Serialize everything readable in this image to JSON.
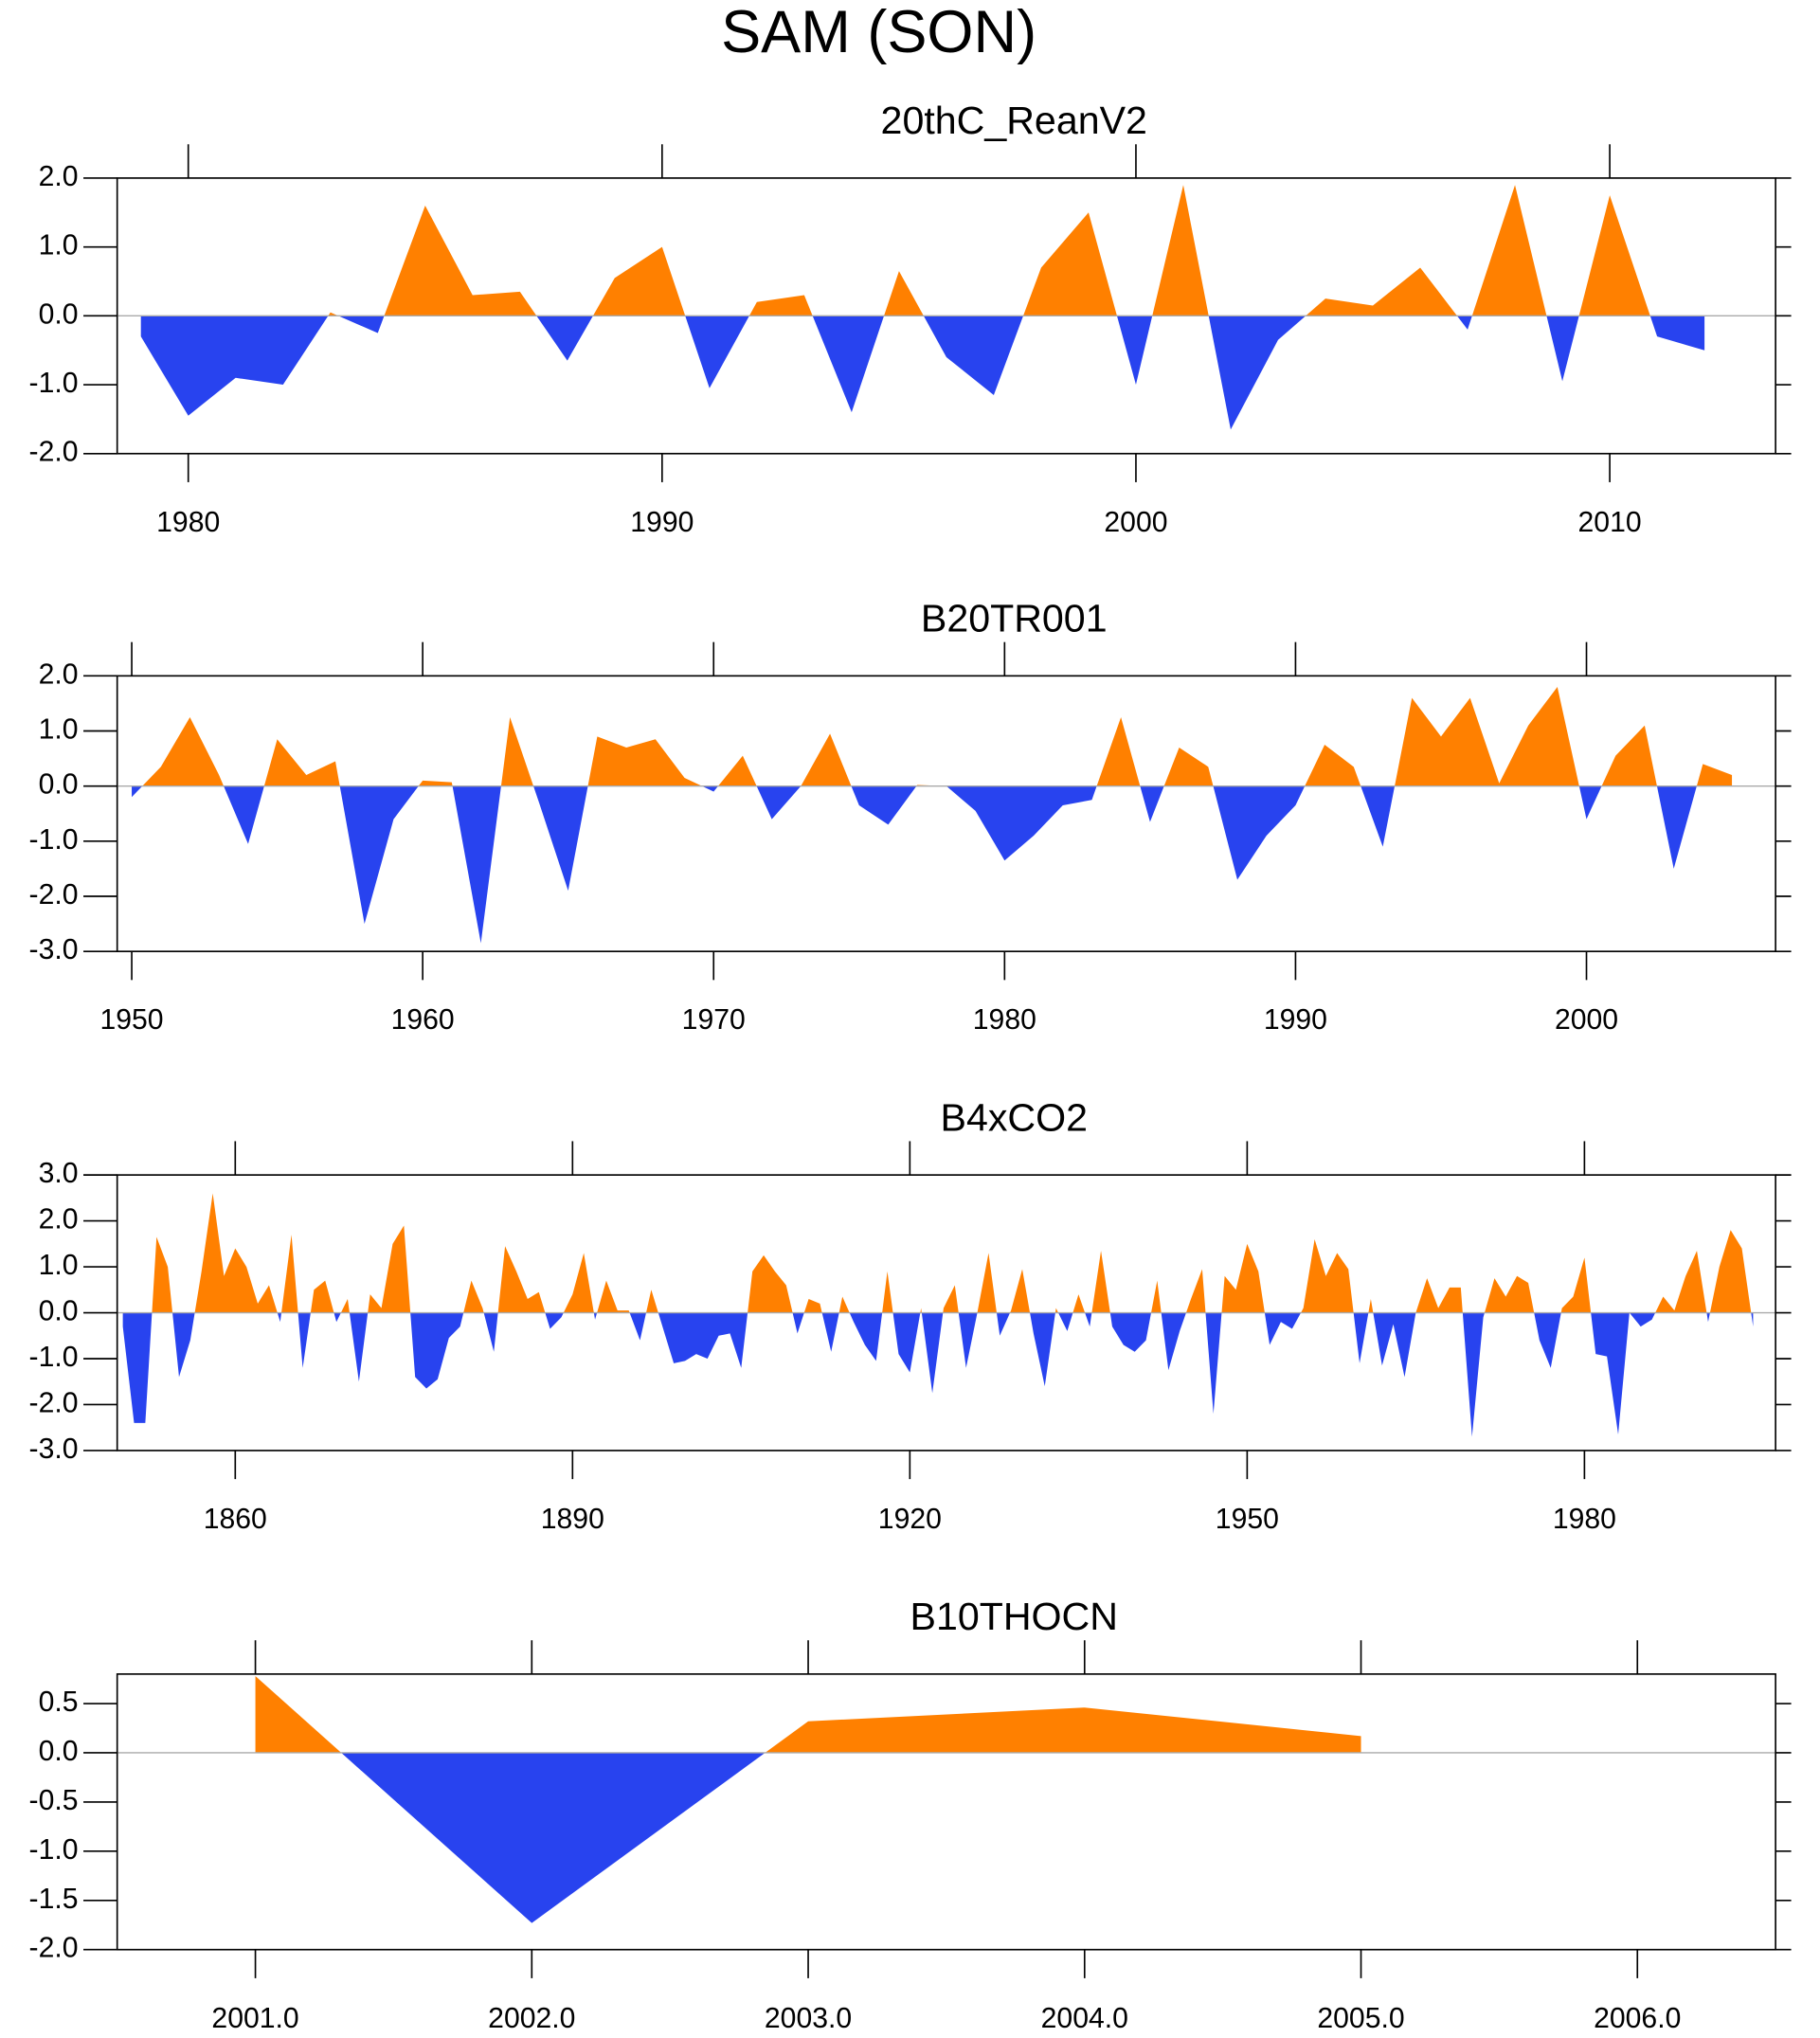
{
  "title": "SAM (SON)",
  "chart_data": [
    {
      "type": "area",
      "title": "20thC_ReanV2",
      "color_above": "#ff8000",
      "color_below": "#2843ef",
      "x": [
        1979,
        1980,
        1981,
        1982,
        1983,
        1984,
        1985,
        1986,
        1987,
        1988,
        1989,
        1990,
        1991,
        1992,
        1993,
        1994,
        1995,
        1996,
        1997,
        1998,
        1999,
        2000,
        2001,
        2002,
        2003,
        2004,
        2005,
        2006,
        2007,
        2008,
        2009,
        2010,
        2011,
        2012
      ],
      "values": [
        -0.3,
        -1.45,
        -0.9,
        -1.0,
        0.05,
        -0.25,
        1.6,
        0.3,
        0.35,
        -0.65,
        0.55,
        1.0,
        -1.05,
        0.2,
        0.3,
        -1.4,
        0.65,
        -0.6,
        -1.15,
        0.7,
        1.5,
        -1.0,
        1.9,
        -1.65,
        -0.35,
        0.25,
        0.15,
        0.7,
        -0.2,
        1.9,
        -0.95,
        1.75,
        -0.3,
        -0.5
      ],
      "xlim": [
        1978.5,
        2013.5
      ],
      "ylim": [
        -2,
        2
      ],
      "xticks": [
        1980,
        1990,
        2000,
        2010
      ],
      "yticks": [
        {
          "value": 2,
          "label": "2.0"
        },
        {
          "value": 1,
          "label": "1.0"
        },
        {
          "value": 0,
          "label": "0.0"
        },
        {
          "value": -1,
          "label": "-1.0"
        },
        {
          "value": -2,
          "label": "-2.0"
        }
      ]
    },
    {
      "type": "area",
      "title": "B20TR001",
      "color_above": "#ff8000",
      "color_below": "#2843ef",
      "x": [
        1950,
        1951,
        1952,
        1953,
        1954,
        1955,
        1956,
        1957,
        1958,
        1959,
        1960,
        1961,
        1962,
        1963,
        1964,
        1965,
        1966,
        1967,
        1968,
        1969,
        1970,
        1971,
        1972,
        1973,
        1974,
        1975,
        1976,
        1977,
        1978,
        1979,
        1980,
        1981,
        1982,
        1983,
        1984,
        1985,
        1986,
        1987,
        1988,
        1989,
        1990,
        1991,
        1992,
        1993,
        1994,
        1995,
        1996,
        1997,
        1998,
        1999,
        2000,
        2001,
        2002,
        2003,
        2004,
        2005
      ],
      "values": [
        -0.2,
        0.35,
        1.25,
        0.2,
        -1.05,
        0.85,
        0.2,
        0.45,
        -2.5,
        -0.6,
        0.1,
        0.07,
        -2.85,
        1.25,
        -0.3,
        -1.9,
        0.9,
        0.7,
        0.85,
        0.15,
        -0.1,
        0.55,
        -0.6,
        0.0,
        0.95,
        -0.35,
        -0.7,
        0.02,
        0.0,
        -0.45,
        -1.35,
        -0.9,
        -0.35,
        -0.25,
        1.25,
        -0.65,
        0.7,
        0.35,
        -1.7,
        -0.9,
        -0.35,
        0.75,
        0.35,
        -1.1,
        1.6,
        0.9,
        1.6,
        0.05,
        1.1,
        1.8,
        -0.6,
        0.55,
        1.1,
        -1.5,
        0.4,
        0.2
      ],
      "xlim": [
        1949.5,
        2006.5
      ],
      "ylim": [
        -3,
        2
      ],
      "xticks": [
        1950,
        1960,
        1970,
        1980,
        1990,
        2000
      ],
      "yticks": [
        {
          "value": 2,
          "label": "2.0"
        },
        {
          "value": 1,
          "label": "1.0"
        },
        {
          "value": 0,
          "label": "0.0"
        },
        {
          "value": -1,
          "label": "-1.0"
        },
        {
          "value": -2,
          "label": "-2.0"
        },
        {
          "value": -3,
          "label": "-3.0"
        }
      ]
    },
    {
      "type": "area",
      "title": "B4xCO2",
      "color_above": "#ff8000",
      "color_below": "#2843ef",
      "x": [
        1850,
        1851,
        1852,
        1853,
        1854,
        1855,
        1856,
        1857,
        1858,
        1859,
        1860,
        1861,
        1862,
        1863,
        1864,
        1865,
        1866,
        1867,
        1868,
        1869,
        1870,
        1871,
        1872,
        1873,
        1874,
        1875,
        1876,
        1877,
        1878,
        1879,
        1880,
        1881,
        1882,
        1883,
        1884,
        1885,
        1886,
        1887,
        1888,
        1889,
        1890,
        1891,
        1892,
        1893,
        1894,
        1895,
        1896,
        1897,
        1898,
        1899,
        1900,
        1901,
        1902,
        1903,
        1904,
        1905,
        1906,
        1907,
        1908,
        1909,
        1910,
        1911,
        1912,
        1913,
        1914,
        1915,
        1916,
        1917,
        1918,
        1919,
        1920,
        1921,
        1922,
        1923,
        1924,
        1925,
        1926,
        1927,
        1928,
        1929,
        1930,
        1931,
        1932,
        1933,
        1934,
        1935,
        1936,
        1937,
        1938,
        1939,
        1940,
        1941,
        1942,
        1943,
        1944,
        1945,
        1946,
        1947,
        1948,
        1949,
        1950,
        1951,
        1952,
        1953,
        1954,
        1955,
        1956,
        1957,
        1958,
        1959,
        1960,
        1961,
        1962,
        1963,
        1964,
        1965,
        1966,
        1967,
        1968,
        1969,
        1970,
        1971,
        1972,
        1973,
        1974,
        1975,
        1976,
        1977,
        1978,
        1979,
        1980,
        1981,
        1982,
        1983,
        1984,
        1985,
        1986,
        1987,
        1988,
        1989,
        1990,
        1991,
        1992,
        1993,
        1994,
        1995
      ],
      "values": [
        -0.3,
        -2.4,
        -2.4,
        1.65,
        1.0,
        -1.4,
        -0.6,
        0.9,
        2.6,
        0.8,
        1.4,
        1.0,
        0.2,
        0.6,
        -0.2,
        1.7,
        -1.2,
        0.5,
        0.7,
        -0.2,
        0.3,
        -1.5,
        0.4,
        0.1,
        1.5,
        1.9,
        -1.4,
        -1.65,
        -1.45,
        -0.55,
        -0.3,
        0.7,
        0.1,
        -0.85,
        1.45,
        0.9,
        0.3,
        0.45,
        -0.35,
        -0.1,
        0.4,
        1.3,
        -0.15,
        0.7,
        0.05,
        0.05,
        -0.6,
        0.5,
        -0.3,
        -1.1,
        -1.05,
        -0.9,
        -1.0,
        -0.5,
        -0.45,
        -1.2,
        0.9,
        1.25,
        0.9,
        0.6,
        -0.45,
        0.3,
        0.2,
        -0.85,
        0.35,
        -0.2,
        -0.7,
        -1.05,
        0.9,
        -0.9,
        -1.3,
        0.1,
        -1.75,
        0.1,
        0.6,
        -1.2,
        0.0,
        1.3,
        -0.5,
        0.05,
        0.95,
        -0.45,
        -1.6,
        0.1,
        -0.4,
        0.4,
        -0.3,
        1.35,
        -0.3,
        -0.7,
        -0.85,
        -0.6,
        0.7,
        -1.25,
        -0.4,
        0.3,
        0.95,
        -2.2,
        0.8,
        0.5,
        1.5,
        0.9,
        -0.7,
        -0.2,
        -0.35,
        0.1,
        1.6,
        0.8,
        1.3,
        0.95,
        -1.1,
        0.3,
        -1.15,
        -0.25,
        -1.4,
        0.0,
        0.75,
        0.1,
        0.55,
        0.55,
        -2.7,
        -0.1,
        0.75,
        0.35,
        0.8,
        0.65,
        -0.6,
        -1.2,
        0.1,
        0.35,
        1.2,
        -0.9,
        -0.95,
        -2.65,
        0.0,
        -0.3,
        -0.15,
        0.35,
        0.05,
        0.8,
        1.35,
        -0.2,
        1.0,
        1.8,
        1.4,
        -0.3
      ],
      "xlim": [
        1849.5,
        1997
      ],
      "ylim": [
        -3,
        3
      ],
      "xticks": [
        1860,
        1890,
        1920,
        1950,
        1980
      ],
      "yticks": [
        {
          "value": 3,
          "label": "3.0"
        },
        {
          "value": 2,
          "label": "2.0"
        },
        {
          "value": 1,
          "label": "1.0"
        },
        {
          "value": 0,
          "label": "0.0"
        },
        {
          "value": -1,
          "label": "-1.0"
        },
        {
          "value": -2,
          "label": "-2.0"
        },
        {
          "value": -3,
          "label": "-3.0"
        }
      ]
    },
    {
      "type": "area",
      "title": "B10THOCN",
      "color_above": "#ff8000",
      "color_below": "#2843ef",
      "x": [
        2001,
        2002,
        2003,
        2004,
        2005
      ],
      "values": [
        0.78,
        -1.73,
        0.32,
        0.46,
        0.17
      ],
      "xlim": [
        2000.5,
        2006.5
      ],
      "ylim": [
        -2,
        0.8
      ],
      "xticks": [
        {
          "value": 2001,
          "label": "2001.0"
        },
        {
          "value": 2002,
          "label": "2002.0"
        },
        {
          "value": 2003,
          "label": "2003.0"
        },
        {
          "value": 2004,
          "label": "2004.0"
        },
        {
          "value": 2005,
          "label": "2005.0"
        },
        {
          "value": 2006,
          "label": "2006.0"
        }
      ],
      "yticks": [
        {
          "value": 0.5,
          "label": "0.5"
        },
        {
          "value": 0,
          "label": "0.0"
        },
        {
          "value": -0.5,
          "label": "-0.5"
        },
        {
          "value": -1,
          "label": "-1.0"
        },
        {
          "value": -1.5,
          "label": "-1.5"
        },
        {
          "value": -2,
          "label": "-2.0"
        }
      ]
    }
  ]
}
